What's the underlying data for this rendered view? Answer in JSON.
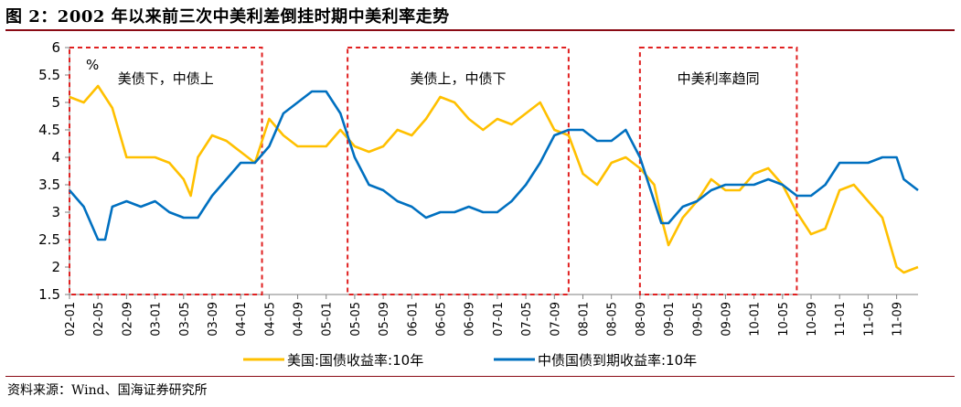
{
  "title": "图 2：2002 年以来前三次中美利差倒挂时期中美利率走势",
  "source": "资料来源：Wind、国海证券研究所",
  "unit_label": "%",
  "colors": {
    "us": "#ffc000",
    "cn": "#0070c0",
    "box": "#e02020",
    "rule": "#8a0a14"
  },
  "chart_data": {
    "type": "line",
    "ylim": [
      1.5,
      6
    ],
    "yticks": [
      1.5,
      2,
      2.5,
      3,
      3.5,
      4,
      4.5,
      5,
      5.5,
      6
    ],
    "xticks": [
      "02-01",
      "02-05",
      "02-09",
      "03-01",
      "03-05",
      "03-09",
      "04-01",
      "04-05",
      "04-09",
      "05-01",
      "05-05",
      "05-09",
      "06-01",
      "06-05",
      "06-09",
      "07-01",
      "07-05",
      "07-09",
      "08-01",
      "08-05",
      "08-09",
      "09-01",
      "09-05",
      "09-09",
      "10-01",
      "10-05",
      "10-09",
      "11-01",
      "11-05",
      "11-09"
    ],
    "annotations": [
      {
        "text": "美债下，中债上",
        "x_start": "02-01",
        "x_end": "04-04"
      },
      {
        "text": "美债上，中债下",
        "x_start": "05-04",
        "x_end": "07-11"
      },
      {
        "text": "中美利率趋同",
        "x_start": "08-09",
        "x_end": "10-07"
      }
    ],
    "series": [
      {
        "name": "美国:国债收益率:10年",
        "x": [
          "02-01",
          "02-03",
          "02-05",
          "02-07",
          "02-09",
          "02-11",
          "03-01",
          "03-03",
          "03-05",
          "03-06",
          "03-07",
          "03-09",
          "03-11",
          "04-01",
          "04-03",
          "04-05",
          "04-07",
          "04-09",
          "04-11",
          "05-01",
          "05-03",
          "05-05",
          "05-07",
          "05-09",
          "05-11",
          "06-01",
          "06-03",
          "06-05",
          "06-07",
          "06-09",
          "06-11",
          "07-01",
          "07-03",
          "07-05",
          "07-07",
          "07-09",
          "07-11",
          "08-01",
          "08-03",
          "08-05",
          "08-07",
          "08-09",
          "08-11",
          "08-12",
          "09-01",
          "09-03",
          "09-05",
          "09-07",
          "09-09",
          "09-11",
          "10-01",
          "10-03",
          "10-05",
          "10-07",
          "10-09",
          "10-11",
          "11-01",
          "11-03",
          "11-05",
          "11-07",
          "11-09",
          "11-10",
          "11-12"
        ],
        "values": [
          5.1,
          5.0,
          5.3,
          4.9,
          4.0,
          4.0,
          4.0,
          3.9,
          3.6,
          3.3,
          4.0,
          4.4,
          4.3,
          4.1,
          3.9,
          4.7,
          4.4,
          4.2,
          4.2,
          4.2,
          4.5,
          4.2,
          4.1,
          4.2,
          4.5,
          4.4,
          4.7,
          5.1,
          5.0,
          4.7,
          4.5,
          4.7,
          4.6,
          4.8,
          5.0,
          4.5,
          4.4,
          3.7,
          3.5,
          3.9,
          4.0,
          3.8,
          3.5,
          2.9,
          2.4,
          2.9,
          3.2,
          3.6,
          3.4,
          3.4,
          3.7,
          3.8,
          3.5,
          3.0,
          2.6,
          2.7,
          3.4,
          3.5,
          3.2,
          2.9,
          2.0,
          1.9,
          2.0
        ]
      },
      {
        "name": "中债国债到期收益率:10年",
        "x": [
          "02-01",
          "02-03",
          "02-05",
          "02-06",
          "02-07",
          "02-09",
          "02-11",
          "03-01",
          "03-03",
          "03-05",
          "03-07",
          "03-09",
          "03-11",
          "04-01",
          "04-03",
          "04-05",
          "04-07",
          "04-09",
          "04-11",
          "05-01",
          "05-03",
          "05-05",
          "05-07",
          "05-09",
          "05-11",
          "06-01",
          "06-03",
          "06-05",
          "06-07",
          "06-09",
          "06-11",
          "07-01",
          "07-03",
          "07-05",
          "07-07",
          "07-09",
          "07-11",
          "08-01",
          "08-03",
          "08-05",
          "08-07",
          "08-09",
          "08-11",
          "08-12",
          "09-01",
          "09-03",
          "09-05",
          "09-07",
          "09-09",
          "09-11",
          "10-01",
          "10-03",
          "10-05",
          "10-07",
          "10-09",
          "10-11",
          "11-01",
          "11-03",
          "11-05",
          "11-07",
          "11-09",
          "11-10",
          "11-12"
        ],
        "values": [
          3.4,
          3.1,
          2.5,
          2.5,
          3.1,
          3.2,
          3.1,
          3.2,
          3.0,
          2.9,
          2.9,
          3.3,
          3.6,
          3.9,
          3.9,
          4.2,
          4.8,
          5.0,
          5.2,
          5.2,
          4.8,
          4.0,
          3.5,
          3.4,
          3.2,
          3.1,
          2.9,
          3.0,
          3.0,
          3.1,
          3.0,
          3.0,
          3.2,
          3.5,
          3.9,
          4.4,
          4.5,
          4.5,
          4.3,
          4.3,
          4.5,
          4.0,
          3.2,
          2.8,
          2.8,
          3.1,
          3.2,
          3.4,
          3.5,
          3.5,
          3.5,
          3.6,
          3.5,
          3.3,
          3.3,
          3.5,
          3.9,
          3.9,
          3.9,
          4.0,
          4.0,
          3.6,
          3.4
        ]
      }
    ]
  }
}
